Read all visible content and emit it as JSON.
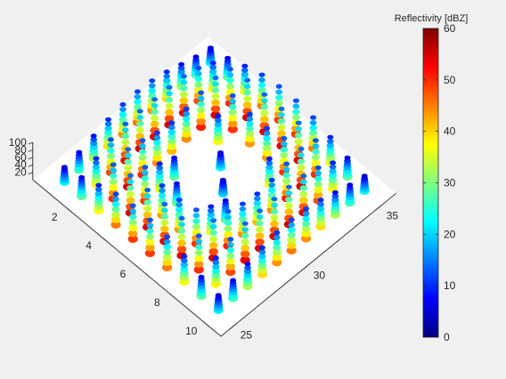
{
  "chart_data": {
    "type": "3d-scatter",
    "x_ticks": [
      2,
      4,
      6,
      8,
      10
    ],
    "y_ticks": [
      25,
      30,
      35
    ],
    "z_ticks": [
      20,
      40,
      60,
      80,
      100
    ],
    "xlim": [
      0,
      11
    ],
    "ylim": [
      24,
      36
    ],
    "zlim": [
      0,
      100
    ],
    "colorbar": {
      "label": "Reflectivity [dBZ]",
      "ticks": [
        0,
        10,
        20,
        30,
        40,
        50,
        60
      ],
      "range": [
        0,
        60
      ],
      "colormap": [
        "#00007f",
        "#0000ff",
        "#007fff",
        "#00ffff",
        "#7fff7f",
        "#ffff00",
        "#ff7f00",
        "#ff0000",
        "#7f0000"
      ]
    },
    "pattern": {
      "description_free_fields_only": true,
      "ring_center": [
        5.5,
        30
      ],
      "ring_radius_peak": 3.6,
      "max_height": 100,
      "max_reflectivity": 55
    },
    "grid": false,
    "background": "#f0f0f0",
    "floor_color": "#ffffff"
  }
}
